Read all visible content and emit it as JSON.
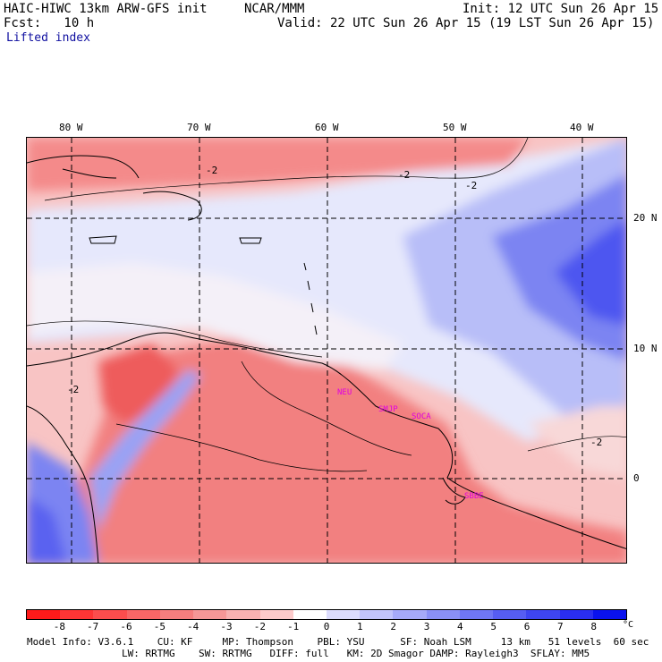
{
  "header": {
    "model": "HAIC-HIWC 13km ARW-GFS init",
    "org": "NCAR/MMM",
    "init": "Init: 12 UTC Sun 26 Apr 15",
    "fcst": "Fcst:   10 h",
    "valid": "Valid: 22 UTC Sun 26 Apr 15 (19 LST Sun 26 Apr 15)",
    "field": "Lifted index"
  },
  "map": {
    "lon_labels": [
      "80 W",
      "70 W",
      "60 W",
      "50 W",
      "40 W"
    ],
    "lat_labels": [
      "20 N",
      "10 N",
      "0"
    ],
    "contour_label": "-2",
    "stations": [
      "NEU",
      "SMJP",
      "SOCA",
      "SBBE"
    ],
    "colors": {
      "negative": "#f06060",
      "positive": "#6c7cf0",
      "station": "#e000e0",
      "ocean_deep_blue": "#3c3cf0"
    }
  },
  "colorbar": {
    "labels": [
      "-8",
      "-7",
      "-6",
      "-5",
      "-4",
      "-3",
      "-2",
      "-1",
      "0",
      "1",
      "2",
      "3",
      "4",
      "5",
      "6",
      "7",
      "8"
    ],
    "unit": "°C",
    "colors": [
      "#ff1a1a",
      "#ff3535",
      "#fc4d4d",
      "#f86666",
      "#f67e7e",
      "#f69797",
      "#f8b1b1",
      "#fccaca",
      "#ffffff",
      "#dcdcfc",
      "#c2c4fa",
      "#a6aaf8",
      "#8a90f6",
      "#6f76f4",
      "#565df2",
      "#3e45f0",
      "#2a2ef0",
      "#0a12ee"
    ]
  },
  "footer": {
    "line1": "Model Info: V3.6.1    CU: KF     MP: Thompson    PBL: YSU      SF: Noah LSM     13 km   51 levels  60 sec",
    "line2": "                LW: RRTMG    SW: RRTMG   DIFF: full   KM: 2D Smagor DAMP: Rayleigh3  SFLAY: MM5"
  }
}
